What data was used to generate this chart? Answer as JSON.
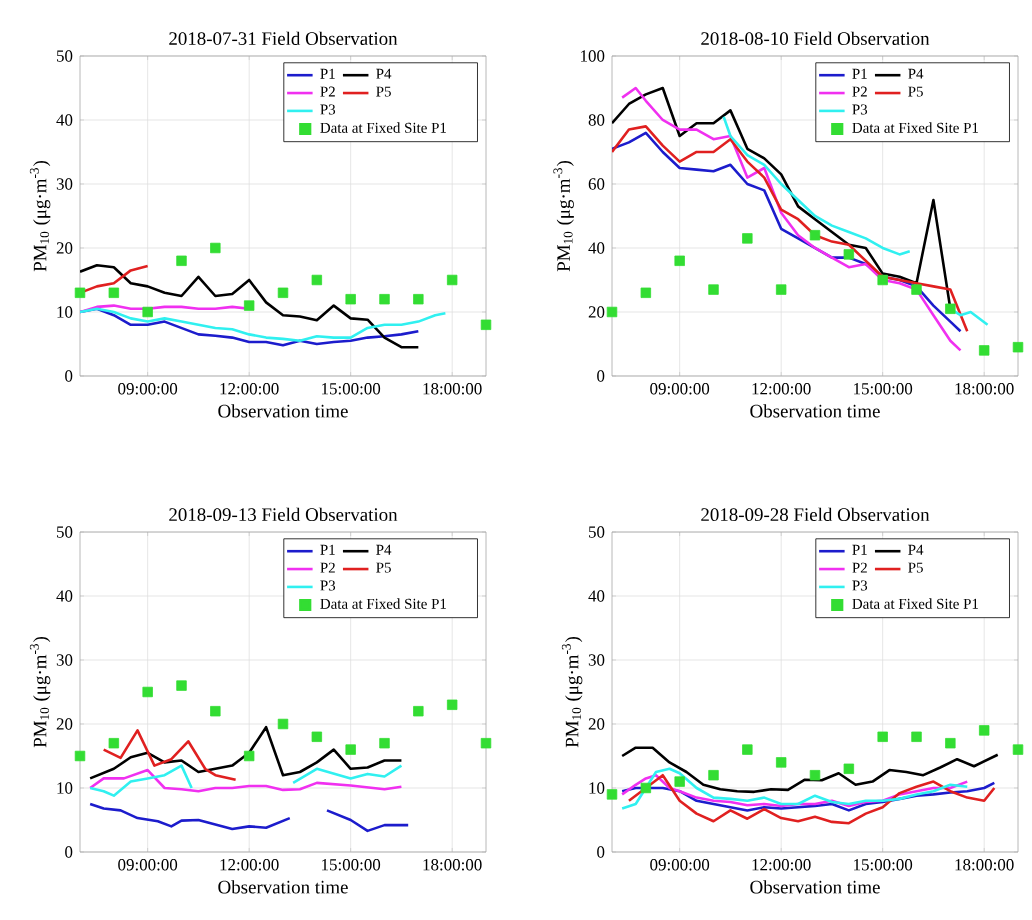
{
  "chart_data": [
    {
      "type": "line",
      "title": "2018-07-31 Field Observation",
      "xlabel": "Observation time",
      "ylabel": "PM$_{10}$ (μg·m$^{-3}$)",
      "xlim": [
        7,
        19
      ],
      "ylim": [
        0,
        50
      ],
      "grid": true,
      "legend": "top right",
      "xticks": [
        {
          "value": 9,
          "label": "09:00:00"
        },
        {
          "value": 12,
          "label": "12:00:00"
        },
        {
          "value": 15,
          "label": "15:00:00"
        },
        {
          "value": 18,
          "label": "18:00:00"
        }
      ],
      "yticks": [
        0,
        10,
        20,
        30,
        40,
        50
      ],
      "series": [
        {
          "name": "P1",
          "color": "#1c1ccc",
          "x": [
            7,
            7.5,
            8,
            8.5,
            9,
            9.5,
            10,
            10.5,
            11,
            11.5,
            12,
            12.5,
            13,
            13.5,
            14,
            14.5,
            15,
            15.5,
            16,
            16.5,
            17
          ],
          "values": [
            10,
            10.5,
            9.5,
            8,
            8,
            8.5,
            7.5,
            6.5,
            6.3,
            6,
            5.3,
            5.3,
            4.8,
            5.5,
            5,
            5.3,
            5.5,
            6,
            6.2,
            6.5,
            7
          ]
        },
        {
          "name": "P4",
          "color": "#000000",
          "x": [
            7,
            7.5,
            8,
            8.5,
            9,
            9.5,
            10,
            10.5,
            11,
            11.5,
            12,
            12.5,
            13,
            13.5,
            14,
            14.5,
            15,
            15.5,
            16,
            16.5,
            17
          ],
          "values": [
            16.3,
            17.3,
            17,
            14.5,
            14,
            13,
            12.5,
            15.5,
            12.5,
            12.8,
            15,
            11.5,
            9.5,
            9.3,
            8.7,
            11,
            9,
            8.8,
            6,
            4.5,
            4.5
          ]
        },
        {
          "name": "P2",
          "color": "#f030f0",
          "x": [
            7,
            7.5,
            8,
            8.5,
            9,
            9.5,
            10,
            10.5,
            11,
            11.5,
            12
          ],
          "values": [
            10,
            10.8,
            11,
            10.5,
            10.5,
            10.8,
            10.8,
            10.5,
            10.5,
            10.8,
            10.5
          ]
        },
        {
          "name": "P5",
          "color": "#e02020",
          "x": [
            7,
            7.5,
            8,
            8.5,
            9
          ],
          "values": [
            13,
            14,
            14.5,
            16.5,
            17.2
          ]
        },
        {
          "name": "P3",
          "color": "#30f0f0",
          "x": [
            7,
            7.5,
            8,
            8.5,
            9,
            9.5,
            10,
            10.5,
            11,
            11.5,
            12,
            12.5,
            13,
            13.5,
            14,
            14.5,
            15,
            15.5,
            16,
            16.5,
            17,
            17.5,
            17.8
          ],
          "values": [
            10,
            10.5,
            10,
            9,
            8.5,
            9,
            8.5,
            8,
            7.5,
            7.3,
            6.5,
            6,
            5.8,
            5.5,
            6.2,
            6,
            6,
            7.5,
            8,
            8,
            8.5,
            9.5,
            9.8
          ]
        },
        {
          "name": "Data at Fixed Site P1",
          "type": "scatter",
          "marker": "square",
          "color": "#33dd33",
          "x": [
            7,
            8,
            9,
            10,
            11,
            12,
            13,
            14,
            15,
            16,
            17,
            18,
            19
          ],
          "values": [
            13,
            13,
            10,
            18,
            20,
            11,
            13,
            15,
            12,
            12,
            12,
            15,
            8
          ]
        }
      ]
    },
    {
      "type": "line",
      "title": "2018-08-10 Field Observation",
      "xlabel": "Observation time",
      "ylabel": "PM$_{10}$ (μg·m$^{-3}$)",
      "xlim": [
        7,
        19
      ],
      "ylim": [
        0,
        100
      ],
      "grid": true,
      "legend": "top right",
      "xticks": [
        {
          "value": 9,
          "label": "09:00:00"
        },
        {
          "value": 12,
          "label": "12:00:00"
        },
        {
          "value": 15,
          "label": "15:00:00"
        },
        {
          "value": 18,
          "label": "18:00:00"
        }
      ],
      "yticks": [
        0,
        20,
        40,
        60,
        80,
        100
      ],
      "series": [
        {
          "name": "P1",
          "color": "#1c1ccc",
          "x": [
            7,
            7.5,
            8,
            8.5,
            9,
            9.5,
            10,
            10.5,
            11,
            11.5,
            12,
            12.5,
            13,
            13.5,
            14,
            14.5,
            15,
            15.5,
            16,
            16.5,
            17,
            17.3
          ],
          "values": [
            71,
            73,
            76,
            70,
            65,
            64.5,
            64,
            66,
            60,
            58,
            46,
            43,
            40,
            37,
            37,
            35,
            31,
            30,
            28,
            22,
            17,
            14
          ]
        },
        {
          "name": "P4",
          "color": "#000000",
          "x": [
            7,
            7.5,
            8,
            8.5,
            9,
            9.5,
            10,
            10.5,
            11,
            11.5,
            12,
            12.5,
            13,
            13.5,
            14,
            14.5,
            15,
            15.5,
            16,
            16.5,
            17
          ],
          "values": [
            79,
            85,
            88,
            90,
            75,
            79,
            79,
            83,
            71,
            68,
            63,
            53,
            49,
            45,
            41,
            40,
            32,
            31,
            29,
            55,
            21
          ]
        },
        {
          "name": "P2",
          "color": "#f030f0",
          "x": [
            7.3,
            7.7,
            8,
            8.5,
            9,
            9.5,
            10,
            10.5,
            11,
            11.5,
            12,
            12.5,
            13,
            13.5,
            14,
            14.5,
            15,
            15.5,
            16,
            16.5,
            17,
            17.3
          ],
          "values": [
            87,
            90,
            86,
            80,
            77,
            77,
            74,
            75,
            62,
            65,
            51,
            44,
            40,
            37,
            34,
            35,
            30,
            29,
            27,
            19,
            11,
            8
          ]
        },
        {
          "name": "P5",
          "color": "#e02020",
          "x": [
            7,
            7.5,
            8,
            8.5,
            9,
            9.5,
            10,
            10.5,
            11,
            11.5,
            12,
            12.5,
            13,
            13.5,
            14,
            14.5,
            15,
            15.5,
            16,
            16.5,
            17,
            17.5
          ],
          "values": [
            70,
            77,
            78,
            72,
            67,
            70,
            70,
            74,
            67,
            62,
            52,
            49,
            44,
            42,
            41,
            36,
            31,
            30,
            29,
            28,
            27,
            14
          ]
        },
        {
          "name": "P3",
          "color": "#30f0f0",
          "x": [
            10.3,
            10.5,
            11,
            11.5,
            12,
            12.5,
            13,
            13.5,
            14,
            14.5,
            15,
            15.5,
            15.8,
            16.4,
            17,
            17.3,
            17.6,
            18.1
          ],
          "values": [
            81,
            75,
            69,
            66,
            60,
            55,
            50,
            47,
            45,
            43,
            40,
            38,
            39,
            null,
            21,
            19,
            20,
            16
          ]
        },
        {
          "name": "Data at Fixed Site P1",
          "type": "scatter",
          "marker": "square",
          "color": "#33dd33",
          "x": [
            7,
            8,
            9,
            10,
            11,
            12,
            13,
            14,
            15,
            16,
            17,
            18,
            19
          ],
          "values": [
            20,
            26,
            36,
            27,
            43,
            27,
            44,
            38,
            30,
            27,
            21,
            8,
            9
          ]
        }
      ]
    },
    {
      "type": "line",
      "title": "2018-09-13 Field Observation",
      "xlabel": "Observation time",
      "ylabel": "PM$_{10}$ (μg·m$^{-3}$)",
      "xlim": [
        7,
        19
      ],
      "ylim": [
        0,
        50
      ],
      "grid": true,
      "legend": "top right",
      "xticks": [
        {
          "value": 9,
          "label": "09:00:00"
        },
        {
          "value": 12,
          "label": "12:00:00"
        },
        {
          "value": 15,
          "label": "15:00:00"
        },
        {
          "value": 18,
          "label": "18:00:00"
        }
      ],
      "yticks": [
        0,
        10,
        20,
        30,
        40,
        50
      ],
      "series": [
        {
          "name": "P1",
          "color": "#1c1ccc",
          "x": [
            7.3,
            7.7,
            8.2,
            8.7,
            9.3,
            9.7,
            10,
            10.5,
            11,
            11.5,
            12,
            12.5,
            13.2,
            13.8,
            14.3,
            15,
            15.5,
            16,
            16.7
          ],
          "values": [
            7.5,
            6.8,
            6.5,
            5.3,
            4.8,
            4,
            4.9,
            5,
            4.3,
            3.6,
            4,
            3.8,
            5.3,
            null,
            6.5,
            5,
            3.3,
            4.2,
            4.2
          ]
        },
        {
          "name": "P4",
          "color": "#000000",
          "x": [
            7.3,
            8,
            8.5,
            9,
            9.5,
            10,
            10.5,
            11,
            11.5,
            12,
            12.5,
            13,
            13.5,
            14,
            14.5,
            15,
            15.5,
            16,
            16.5
          ],
          "values": [
            11.5,
            13,
            14.8,
            15.5,
            14,
            14.3,
            12.5,
            13,
            13.5,
            15.5,
            19.5,
            12,
            12.5,
            14,
            16,
            13,
            13.2,
            14.3,
            14.3
          ]
        },
        {
          "name": "P2",
          "color": "#f030f0",
          "x": [
            7.3,
            7.7,
            8.3,
            9,
            9.5,
            10,
            10.5,
            11,
            11.5,
            12,
            12.5,
            13,
            13.5,
            14,
            15,
            16,
            16.5
          ],
          "values": [
            10,
            11.5,
            11.5,
            12.8,
            10,
            9.8,
            9.5,
            10,
            10,
            10.3,
            10.3,
            9.7,
            9.8,
            10.8,
            10.4,
            9.8,
            10.2
          ]
        },
        {
          "name": "P5",
          "color": "#e02020",
          "x": [
            7.7,
            8.2,
            8.7,
            9.2,
            9.7,
            10.2,
            10.7,
            11,
            11.6
          ],
          "values": [
            16,
            14.7,
            19,
            13.5,
            14.5,
            17.3,
            13,
            12,
            11.3
          ]
        },
        {
          "name": "P3",
          "color": "#30f0f0",
          "x": [
            7.3,
            7.7,
            8,
            8.5,
            9,
            9.5,
            10,
            10.3,
            12,
            13.3,
            14,
            15,
            15.5,
            16,
            16.5
          ],
          "values": [
            10,
            9.5,
            8.8,
            11,
            11.5,
            12,
            13.5,
            10,
            null,
            10.8,
            13,
            11.5,
            12.2,
            11.8,
            13.5
          ]
        },
        {
          "name": "Data at Fixed Site P1",
          "type": "scatter",
          "marker": "square",
          "color": "#33dd33",
          "x": [
            7,
            8,
            9,
            10,
            11,
            12,
            13,
            14,
            15,
            16,
            17,
            18,
            19
          ],
          "values": [
            15,
            17,
            25,
            26,
            22,
            15,
            20,
            18,
            16,
            17,
            22,
            23,
            17
          ]
        }
      ]
    },
    {
      "type": "line",
      "title": "2018-09-28 Field Observation",
      "xlabel": "Observation time",
      "ylabel": "PM$_{10}$ (μg·m$^{-3}$)",
      "xlim": [
        7,
        19
      ],
      "ylim": [
        0,
        50
      ],
      "grid": true,
      "legend": "top right",
      "xticks": [
        {
          "value": 9,
          "label": "09:00:00"
        },
        {
          "value": 12,
          "label": "12:00:00"
        },
        {
          "value": 15,
          "label": "15:00:00"
        },
        {
          "value": 18,
          "label": "18:00:00"
        }
      ],
      "yticks": [
        0,
        10,
        20,
        30,
        40,
        50
      ],
      "series": [
        {
          "name": "P1",
          "color": "#1c1ccc",
          "x": [
            7.3,
            7.7,
            8,
            8.5,
            9,
            9.5,
            10,
            10.5,
            11,
            11.5,
            12,
            12.5,
            13,
            13.5,
            14,
            14.5,
            15,
            15.5,
            16,
            16.5,
            17,
            17.5,
            18,
            18.3
          ],
          "values": [
            9.5,
            10,
            10,
            10,
            9.5,
            8,
            7.5,
            7,
            6.5,
            7,
            6.8,
            7,
            7.2,
            7.5,
            6.5,
            7.5,
            7.8,
            8.3,
            8.8,
            9,
            9.3,
            9.5,
            10,
            10.8
          ]
        },
        {
          "name": "P4",
          "color": "#000000",
          "x": [
            7.3,
            7.7,
            8.2,
            8.7,
            9.2,
            9.7,
            10.2,
            10.7,
            11.2,
            11.7,
            12.2,
            12.7,
            13.2,
            13.7,
            14.2,
            14.7,
            15.2,
            15.7,
            16.2,
            16.7,
            17.2,
            17.7,
            18.4
          ],
          "values": [
            15,
            16.3,
            16.3,
            14,
            12.5,
            10.5,
            9.8,
            9.5,
            9.4,
            9.8,
            9.7,
            11.3,
            11.2,
            12.3,
            10.5,
            11,
            12.8,
            12.5,
            12,
            13.2,
            14.5,
            13.4,
            15.2
          ]
        },
        {
          "name": "P2",
          "color": "#f030f0",
          "x": [
            7.3,
            7.7,
            8,
            8.3,
            8.7,
            9,
            9.5,
            10,
            10.5,
            11,
            11.5,
            12,
            12.5,
            13,
            13.5,
            14,
            14.5,
            15,
            15.5,
            16,
            16.5,
            17,
            17.5
          ],
          "values": [
            9,
            10.5,
            11.5,
            12,
            10,
            9.5,
            8.5,
            8,
            7.8,
            7.3,
            7.5,
            7.2,
            7.5,
            7.5,
            8,
            7.2,
            7.8,
            8,
            9,
            9.5,
            10,
            10,
            11
          ]
        },
        {
          "name": "P5",
          "color": "#e02020",
          "x": [
            7.5,
            8,
            8.5,
            9,
            9.5,
            10,
            10.5,
            11,
            11.5,
            12,
            12.5,
            13,
            13.5,
            14,
            14.5,
            15,
            15.5,
            16,
            16.5,
            17,
            17.5,
            18,
            18.3
          ],
          "values": [
            8,
            10,
            12,
            8,
            6,
            4.8,
            6.5,
            5.2,
            6.7,
            5.3,
            4.8,
            5.5,
            4.7,
            4.5,
            6,
            7,
            9.2,
            10.2,
            11,
            9.5,
            8.5,
            8,
            10
          ]
        },
        {
          "name": "P3",
          "color": "#30f0f0",
          "x": [
            7.3,
            7.7,
            8,
            8.3,
            8.7,
            9,
            9.5,
            10,
            10.5,
            11,
            11.5,
            12,
            12.5,
            13,
            13.5,
            14,
            14.5,
            15,
            15.5,
            16,
            16.5,
            17,
            17.5
          ],
          "values": [
            6.8,
            7.5,
            10,
            12.5,
            13,
            12.3,
            10,
            8.5,
            8.3,
            8,
            8.5,
            7.5,
            7.5,
            8.8,
            7.8,
            7.5,
            8,
            8,
            8.3,
            9,
            9.5,
            10.5,
            10.2
          ]
        },
        {
          "name": "Data at Fixed Site P1",
          "type": "scatter",
          "marker": "square",
          "color": "#33dd33",
          "x": [
            7,
            8,
            9,
            10,
            11,
            12,
            13,
            14,
            15,
            16,
            17,
            18,
            19
          ],
          "values": [
            9,
            10,
            11,
            12,
            16,
            14,
            12,
            13,
            18,
            18,
            17,
            19,
            16
          ]
        }
      ]
    }
  ]
}
